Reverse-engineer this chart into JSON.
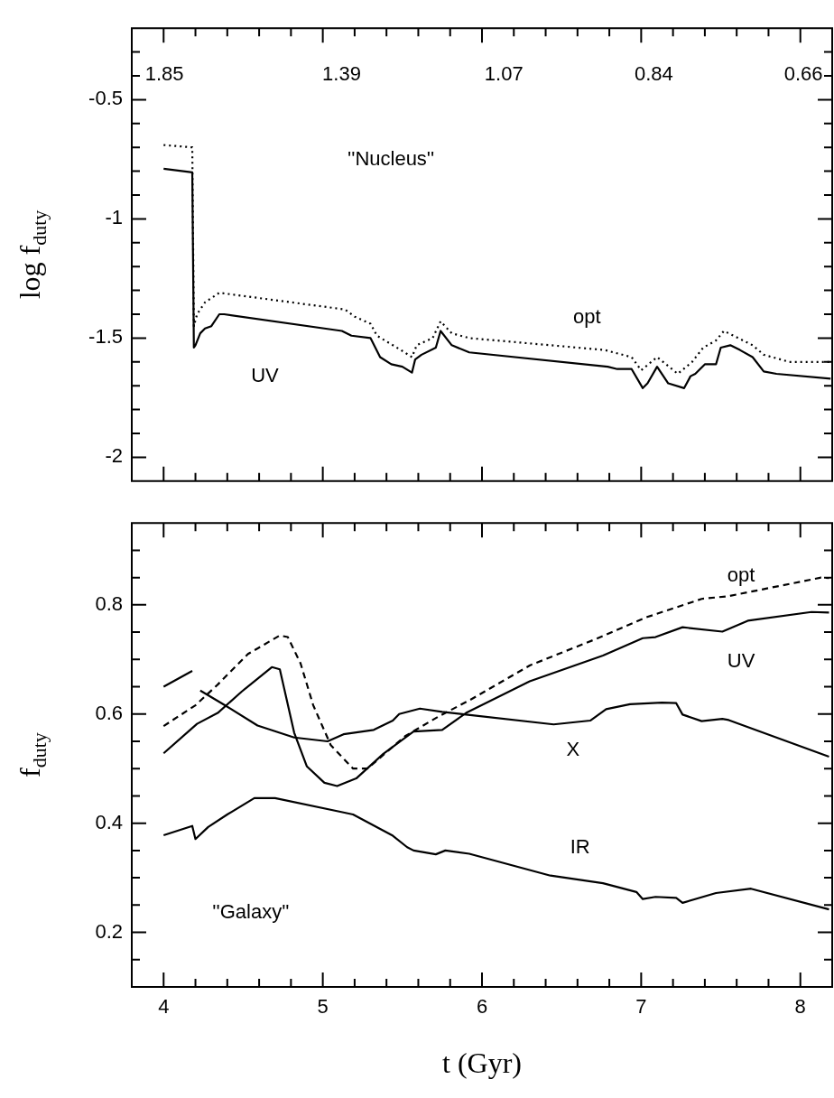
{
  "chart_data": [
    {
      "type": "line",
      "ylabel": "log f$_{duty}$",
      "xlim": [
        3.8,
        8.2
      ],
      "ylim": [
        -2.1,
        -0.2
      ],
      "tick_labels": "y",
      "log": "x2",
      "xticks": [
        4,
        {
          "value": 4.2,
          "label": null
        },
        {
          "value": 4.4,
          "label": null
        },
        {
          "value": 4.6,
          "label": null
        },
        {
          "value": 4.8,
          "label": null
        },
        5,
        {
          "value": 5.2,
          "label": null
        },
        {
          "value": 5.4,
          "label": null
        },
        {
          "value": 5.6,
          "label": null
        },
        {
          "value": 5.8,
          "label": null
        },
        6,
        {
          "value": 6.2,
          "label": null
        },
        {
          "value": 6.4,
          "label": null
        },
        {
          "value": 6.6,
          "label": null
        },
        {
          "value": 6.8,
          "label": null
        },
        7,
        {
          "value": 7.2,
          "label": null
        },
        {
          "value": 7.4,
          "label": null
        },
        {
          "value": 7.6,
          "label": null
        },
        {
          "value": 7.8,
          "label": null
        },
        8
      ],
      "x2lim": [
        1.95,
        0.63
      ],
      "x2ticks": [
        1.85,
        1.39,
        1.07,
        0.84,
        0.66
      ],
      "yticks": [
        {
          "value": -0.3,
          "label": null
        },
        {
          "value": -0.4,
          "label": null
        },
        -0.5,
        {
          "value": -0.6,
          "label": null
        },
        {
          "value": -0.7,
          "label": null
        },
        {
          "value": -0.8,
          "label": null
        },
        {
          "value": -0.9,
          "label": null
        },
        -1,
        {
          "value": -1.1,
          "label": null
        },
        {
          "value": -1.2,
          "label": null
        },
        {
          "value": -1.3,
          "label": null
        },
        {
          "value": -1.4,
          "label": null
        },
        -1.5,
        {
          "value": -1.6,
          "label": null
        },
        {
          "value": -1.7,
          "label": null
        },
        {
          "value": -1.8,
          "label": null
        },
        {
          "value": -1.9,
          "label": null
        },
        -2
      ],
      "annotations": [
        "''Nucleus''"
      ],
      "series": [
        {
          "name": "UV",
          "color": "#000000",
          "line_style": "solid",
          "x": [
            4.0,
            4.18,
            4.19,
            4.2,
            4.23,
            4.26,
            4.3,
            4.35,
            4.38,
            5.12,
            5.18,
            5.3,
            5.36,
            5.43,
            5.5,
            5.56,
            5.58,
            5.62,
            5.71,
            5.74,
            5.81,
            5.92,
            6.79,
            6.85,
            6.94,
            7.01,
            7.04,
            7.1,
            7.17,
            7.27,
            7.31,
            7.34,
            7.4,
            7.47,
            7.5,
            7.56,
            7.62,
            7.7,
            7.77,
            7.85,
            8.19
          ],
          "values": [
            -0.79,
            -0.805,
            -1.54,
            -1.53,
            -1.48,
            -1.46,
            -1.45,
            -1.4,
            -1.4,
            -1.47,
            -1.49,
            -1.5,
            -1.58,
            -1.61,
            -1.62,
            -1.645,
            -1.59,
            -1.57,
            -1.54,
            -1.47,
            -1.53,
            -1.56,
            -1.62,
            -1.63,
            -1.63,
            -1.71,
            -1.69,
            -1.62,
            -1.69,
            -1.71,
            -1.66,
            -1.65,
            -1.61,
            -1.61,
            -1.54,
            -1.53,
            -1.55,
            -1.58,
            -1.64,
            -1.65,
            -1.67
          ]
        },
        {
          "name": "opt",
          "color": "#000000",
          "line_style": "dotted",
          "x": [
            4.0,
            4.18,
            4.19,
            4.21,
            4.26,
            4.35,
            5.14,
            5.2,
            5.3,
            5.34,
            5.49,
            5.56,
            5.59,
            5.69,
            5.74,
            5.81,
            5.92,
            6.77,
            6.94,
            7.0,
            7.1,
            7.23,
            7.32,
            7.39,
            7.47,
            7.52,
            7.58,
            7.7,
            7.77,
            7.93,
            8.19
          ],
          "values": [
            -0.69,
            -0.7,
            -1.45,
            -1.4,
            -1.35,
            -1.31,
            -1.38,
            -1.41,
            -1.44,
            -1.49,
            -1.55,
            -1.58,
            -1.53,
            -1.5,
            -1.43,
            -1.48,
            -1.5,
            -1.55,
            -1.58,
            -1.635,
            -1.58,
            -1.65,
            -1.6,
            -1.54,
            -1.51,
            -1.47,
            -1.49,
            -1.53,
            -1.57,
            -1.6,
            -1.6
          ]
        }
      ]
    },
    {
      "type": "line",
      "xlabel": "t (Gyr)",
      "ylabel": "f$_{duty}$",
      "xlim": [
        3.8,
        8.2
      ],
      "ylim": [
        0.1,
        0.95
      ],
      "xticks": [
        4,
        {
          "value": 4.2,
          "label": null
        },
        {
          "value": 4.4,
          "label": null
        },
        {
          "value": 4.6,
          "label": null
        },
        {
          "value": 4.8,
          "label": null
        },
        5,
        {
          "value": 5.2,
          "label": null
        },
        {
          "value": 5.4,
          "label": null
        },
        {
          "value": 5.6,
          "label": null
        },
        {
          "value": 5.8,
          "label": null
        },
        6,
        {
          "value": 6.2,
          "label": null
        },
        {
          "value": 6.4,
          "label": null
        },
        {
          "value": 6.6,
          "label": null
        },
        {
          "value": 6.8,
          "label": null
        },
        7,
        {
          "value": 7.2,
          "label": null
        },
        {
          "value": 7.4,
          "label": null
        },
        {
          "value": 7.6,
          "label": null
        },
        {
          "value": 7.8,
          "label": null
        },
        8
      ],
      "yticks": [
        {
          "value": 0.15,
          "label": null
        },
        0.2,
        {
          "value": 0.25,
          "label": null
        },
        {
          "value": 0.3,
          "label": null
        },
        {
          "value": 0.35,
          "label": null
        },
        0.4,
        {
          "value": 0.45,
          "label": null
        },
        {
          "value": 0.5,
          "label": null
        },
        {
          "value": 0.55,
          "label": null
        },
        0.6,
        {
          "value": 0.65,
          "label": null
        },
        {
          "value": 0.7,
          "label": null
        },
        {
          "value": 0.75,
          "label": null
        },
        0.8,
        {
          "value": 0.85,
          "label": null
        },
        {
          "value": 0.9,
          "label": null
        }
      ],
      "annotations": [
        "''Galaxy''"
      ],
      "series": [
        {
          "name": "opt",
          "color": "#000000",
          "line_style": "dashed",
          "x": [
            4.0,
            4.2,
            4.34,
            4.53,
            4.73,
            4.78,
            4.86,
            4.94,
            5.05,
            5.19,
            5.28,
            5.52,
            5.73,
            5.92,
            6.3,
            6.72,
            7.03,
            7.38,
            7.55,
            8.13,
            8.18
          ],
          "values": [
            0.578,
            0.616,
            0.654,
            0.71,
            0.744,
            0.741,
            0.693,
            0.616,
            0.543,
            0.5,
            0.5,
            0.56,
            0.596,
            0.625,
            0.689,
            0.738,
            0.777,
            0.811,
            0.816,
            0.85,
            0.849
          ]
        },
        {
          "name": "UV",
          "color": "#000000",
          "line_style": "solid",
          "x": [
            4.0,
            4.21,
            4.34,
            4.49,
            4.68,
            4.73,
            4.82,
            4.9,
            5.01,
            5.09,
            5.21,
            5.38,
            5.57,
            5.75,
            5.9,
            6.3,
            6.76,
            7.01,
            7.09,
            7.26,
            7.51,
            7.67,
            8.07,
            8.18
          ],
          "values": [
            0.528,
            0.582,
            0.602,
            0.641,
            0.686,
            0.682,
            0.566,
            0.504,
            0.474,
            0.468,
            0.482,
            0.527,
            0.568,
            0.571,
            0.602,
            0.66,
            0.707,
            0.739,
            0.741,
            0.759,
            0.751,
            0.771,
            0.787,
            0.786
          ]
        },
        {
          "name": "X",
          "color": "#000000",
          "line_style": "solid",
          "x": [
            4.0,
            4.18,
            4.2,
            4.23,
            4.38,
            4.59,
            4.82,
            5.03,
            5.13,
            5.32,
            5.44,
            5.48,
            5.61,
            5.75,
            5.9,
            6.45,
            6.68,
            6.78,
            6.93,
            7.13,
            7.22,
            7.26,
            7.38,
            7.51,
            7.55,
            8.18
          ],
          "values": [
            0.65,
            0.679,
            null,
            0.643,
            0.617,
            0.579,
            0.557,
            0.55,
            0.563,
            0.571,
            0.588,
            0.6,
            0.61,
            0.604,
            0.599,
            0.581,
            0.588,
            0.609,
            0.618,
            0.621,
            0.62,
            0.599,
            0.587,
            0.591,
            0.589,
            0.522
          ]
        },
        {
          "name": "IR",
          "color": "#000000",
          "line_style": "solid",
          "x": [
            4.0,
            4.18,
            4.2,
            4.28,
            4.4,
            4.57,
            4.7,
            5.11,
            5.19,
            5.44,
            5.53,
            5.57,
            5.71,
            5.77,
            5.92,
            6.43,
            6.76,
            6.97,
            7.01,
            7.09,
            7.22,
            7.26,
            7.47,
            7.69,
            8.18
          ],
          "values": [
            0.378,
            0.395,
            0.371,
            0.393,
            0.416,
            0.446,
            0.446,
            0.421,
            0.416,
            0.377,
            0.356,
            0.35,
            0.343,
            0.35,
            0.344,
            0.304,
            0.29,
            0.274,
            0.261,
            0.265,
            0.263,
            0.254,
            0.272,
            0.28,
            0.242
          ]
        }
      ]
    }
  ]
}
